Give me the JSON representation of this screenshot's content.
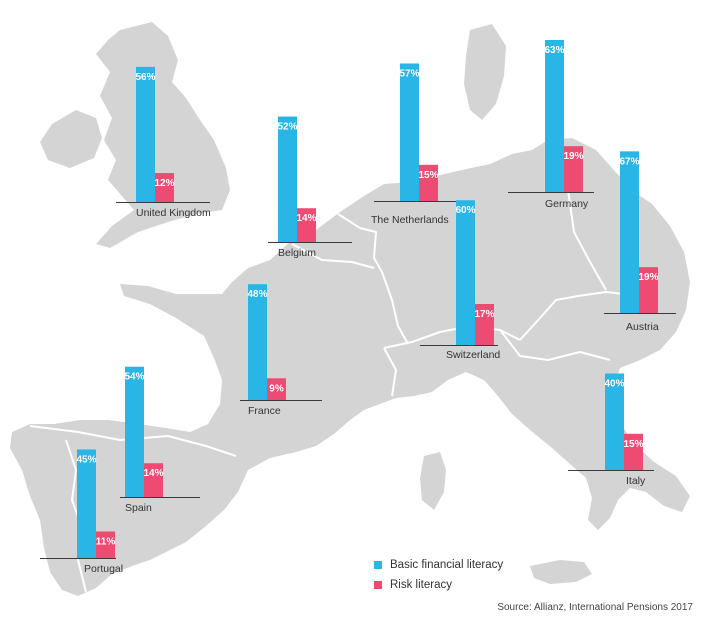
{
  "colors": {
    "basic": "#29b6e6",
    "risk": "#ee4b72",
    "land": "#d3d4d3"
  },
  "legend": {
    "basic": "Basic financial literacy",
    "risk": "Risk literacy"
  },
  "source": "Source: Allianz, International Pensions 2017",
  "chart_data": {
    "type": "bar",
    "unit": "%",
    "series_names": [
      "Basic financial literacy",
      "Risk literacy"
    ],
    "countries": [
      {
        "name": "United Kingdom",
        "basic": 56,
        "risk": 12,
        "basic_label": "56%",
        "risk_label": "12%"
      },
      {
        "name": "Belgium",
        "basic": 52,
        "risk": 14,
        "basic_label": "52%",
        "risk_label": "14%"
      },
      {
        "name": "The Netherlands",
        "basic": 57,
        "risk": 15,
        "basic_label": "57%",
        "risk_label": "15%"
      },
      {
        "name": "Germany",
        "basic": 63,
        "risk": 19,
        "basic_label": "63%",
        "risk_label": "19%"
      },
      {
        "name": "Austria",
        "basic": 67,
        "risk": 19,
        "basic_label": "67%",
        "risk_label": "19%"
      },
      {
        "name": "Switzerland",
        "basic": 60,
        "risk": 17,
        "basic_label": "60%",
        "risk_label": "17%"
      },
      {
        "name": "France",
        "basic": 48,
        "risk": 9,
        "basic_label": "48%",
        "risk_label": "9%"
      },
      {
        "name": "Spain",
        "basic": 54,
        "risk": 14,
        "basic_label": "54%",
        "risk_label": "14%"
      },
      {
        "name": "Portugal",
        "basic": 45,
        "risk": 11,
        "basic_label": "45%",
        "risk_label": "11%"
      },
      {
        "name": "Italy",
        "basic": 40,
        "risk": 15,
        "basic_label": "40%",
        "risk_label": "15%"
      }
    ]
  }
}
